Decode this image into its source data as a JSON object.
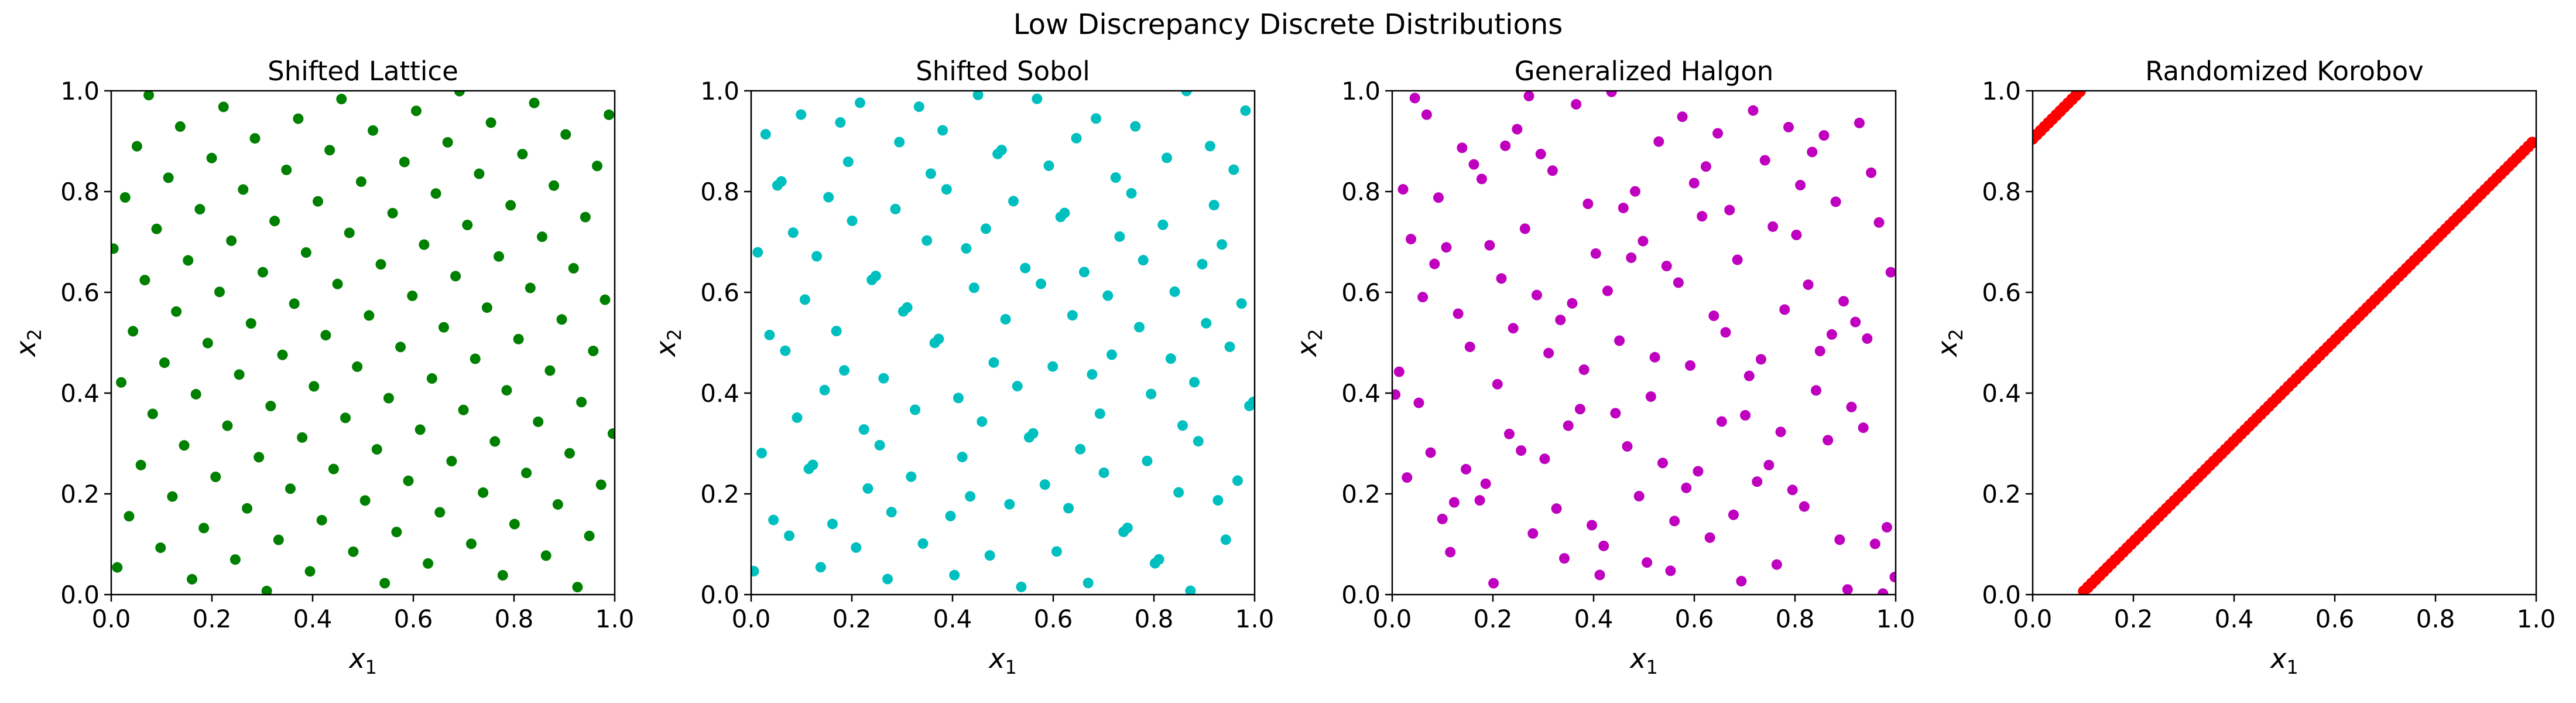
{
  "figure": {
    "title": "Low Discrepancy Discrete Distributions"
  },
  "chart_data": [
    {
      "type": "scatter",
      "title": "Shifted Lattice",
      "xlabel_base": "x",
      "xlabel_sub": "1",
      "ylabel_base": "x",
      "ylabel_sub": "2",
      "xlim": [
        0,
        1
      ],
      "ylim": [
        0,
        1
      ],
      "xticks": [
        "0.0",
        "0.2",
        "0.4",
        "0.6",
        "0.8",
        "1.0"
      ],
      "yticks": [
        "0.0",
        "0.2",
        "0.4",
        "0.6",
        "0.8",
        "1.0"
      ],
      "grid": false,
      "color": "#008000",
      "n": 128,
      "pattern": "lattice",
      "generator": [
        1,
        47
      ],
      "shift": [
        0.012,
        0.054
      ]
    },
    {
      "type": "scatter",
      "title": "Shifted Sobol",
      "xlabel_base": "x",
      "xlabel_sub": "1",
      "ylabel_base": "x",
      "ylabel_sub": "2",
      "xlim": [
        0,
        1
      ],
      "ylim": [
        0,
        1
      ],
      "xticks": [
        "0.0",
        "0.2",
        "0.4",
        "0.6",
        "0.8",
        "1.0"
      ],
      "yticks": [
        "0.0",
        "0.2",
        "0.4",
        "0.6",
        "0.8",
        "1.0"
      ],
      "grid": false,
      "color": "#00BFBF",
      "n": 128,
      "pattern": "sobol",
      "shift": [
        0.31,
        0.57
      ]
    },
    {
      "type": "scatter",
      "title": "Generalized Halgon",
      "xlabel_base": "x",
      "xlabel_sub": "1",
      "ylabel_base": "x",
      "ylabel_sub": "2",
      "xlim": [
        0,
        1
      ],
      "ylim": [
        0,
        1
      ],
      "xticks": [
        "0.0",
        "0.2",
        "0.4",
        "0.6",
        "0.8",
        "1.0"
      ],
      "yticks": [
        "0.0",
        "0.2",
        "0.4",
        "0.6",
        "0.8",
        "1.0"
      ],
      "grid": false,
      "color": "#BF00BF",
      "n": 128,
      "pattern": "halton",
      "shift": [
        0.17,
        0.43
      ]
    },
    {
      "type": "scatter",
      "title": "Randomized Korobov",
      "xlabel_base": "x",
      "xlabel_sub": "1",
      "ylabel_base": "x",
      "ylabel_sub": "2",
      "xlim": [
        0,
        1
      ],
      "ylim": [
        0,
        1
      ],
      "xticks": [
        "0.0",
        "0.2",
        "0.4",
        "0.6",
        "0.8",
        "1.0"
      ],
      "yticks": [
        "0.0",
        "0.2",
        "0.4",
        "0.6",
        "0.8",
        "1.0"
      ],
      "grid": false,
      "color": "#FF0000",
      "n": 128,
      "pattern": "korobov",
      "generator": [
        1,
        1
      ],
      "shift": [
        0.0,
        0.905
      ]
    }
  ]
}
